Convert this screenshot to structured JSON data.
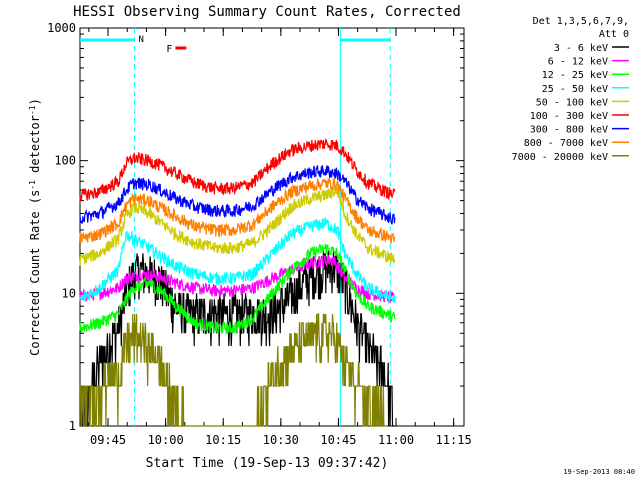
{
  "chart_data": {
    "type": "line",
    "title": "HESSI Observing Summary Count Rates, Corrected",
    "xlabel": "Start Time (19-Sep-13 09:37:42)",
    "ylabel_main": "Corrected Count Rate (s",
    "ylabel_sup1": "-1",
    "ylabel_mid": " detector",
    "ylabel_sup2": "-1",
    "ylabel_end": ")",
    "y_scale": "log",
    "ylim": [
      1,
      1000
    ],
    "y_tick_labels": [
      "1",
      "10",
      "100",
      "1000"
    ],
    "xlim": [
      "09:37:42",
      "11:17:42"
    ],
    "x_tick_labels": [
      "09:45",
      "10:00",
      "10:15",
      "10:30",
      "10:45",
      "11:00",
      "11:15"
    ],
    "legend_title_1": "Det 1,3,5,6,7,9,",
    "legend_title_2": "Att 0",
    "legend_position": "right",
    "grid": false,
    "series": [
      {
        "name": "3 - 6 keV",
        "color": "#000000",
        "values": [
          [
            0,
            1
          ],
          [
            5,
            3
          ],
          [
            10,
            5.5
          ],
          [
            12,
            10
          ],
          [
            14,
            14
          ],
          [
            16,
            15
          ],
          [
            18,
            14
          ],
          [
            20,
            13.5
          ],
          [
            22,
            11
          ],
          [
            25,
            8
          ],
          [
            28,
            7
          ],
          [
            30,
            7
          ],
          [
            35,
            7
          ],
          [
            40,
            7
          ],
          [
            45,
            7
          ],
          [
            48,
            7
          ],
          [
            50,
            7
          ],
          [
            54,
            9
          ],
          [
            58,
            12
          ],
          [
            62,
            15
          ],
          [
            66,
            16.5
          ],
          [
            69,
            12
          ],
          [
            72,
            6
          ],
          [
            75,
            4
          ],
          [
            80,
            2.2
          ],
          [
            82,
            1
          ]
        ]
      },
      {
        "name": "6 - 12 keV",
        "color": "#ff00ff",
        "values": [
          [
            0,
            9.5
          ],
          [
            5,
            10
          ],
          [
            10,
            11
          ],
          [
            12,
            13
          ],
          [
            16,
            14
          ],
          [
            20,
            13.5
          ],
          [
            25,
            12
          ],
          [
            30,
            11
          ],
          [
            35,
            10.5
          ],
          [
            40,
            10.5
          ],
          [
            45,
            11
          ],
          [
            50,
            13
          ],
          [
            55,
            15
          ],
          [
            60,
            17
          ],
          [
            66,
            18
          ],
          [
            69,
            13
          ],
          [
            72,
            11
          ],
          [
            75,
            10
          ],
          [
            80,
            9.5
          ],
          [
            82,
            9
          ]
        ]
      },
      {
        "name": "12 - 25 keV",
        "color": "#00ff00",
        "values": [
          [
            0,
            5.5
          ],
          [
            5,
            6
          ],
          [
            10,
            7
          ],
          [
            12,
            9
          ],
          [
            14,
            11
          ],
          [
            18,
            12
          ],
          [
            22,
            10
          ],
          [
            25,
            8
          ],
          [
            30,
            6
          ],
          [
            35,
            5.5
          ],
          [
            40,
            5.5
          ],
          [
            45,
            6.5
          ],
          [
            50,
            10
          ],
          [
            55,
            15
          ],
          [
            60,
            20
          ],
          [
            64,
            22
          ],
          [
            67,
            20
          ],
          [
            69,
            15
          ],
          [
            72,
            10
          ],
          [
            75,
            8
          ],
          [
            80,
            7
          ],
          [
            82,
            6.5
          ]
        ]
      },
      {
        "name": "25 - 50 keV",
        "color": "#00ffff",
        "values": [
          [
            0,
            9
          ],
          [
            5,
            11
          ],
          [
            10,
            15
          ],
          [
            12,
            28
          ],
          [
            14,
            26
          ],
          [
            18,
            22
          ],
          [
            20,
            20
          ],
          [
            25,
            16
          ],
          [
            30,
            14
          ],
          [
            35,
            13
          ],
          [
            40,
            13
          ],
          [
            45,
            14
          ],
          [
            50,
            20
          ],
          [
            55,
            28
          ],
          [
            60,
            32
          ],
          [
            64,
            34
          ],
          [
            67,
            30
          ],
          [
            69,
            20
          ],
          [
            72,
            14
          ],
          [
            75,
            11
          ],
          [
            80,
            9.5
          ],
          [
            82,
            9
          ]
        ]
      },
      {
        "name": "50 - 100 keV",
        "color": "#cccc00",
        "values": [
          [
            0,
            18
          ],
          [
            5,
            20
          ],
          [
            10,
            26
          ],
          [
            12,
            38
          ],
          [
            14,
            45
          ],
          [
            18,
            40
          ],
          [
            20,
            36
          ],
          [
            25,
            28
          ],
          [
            30,
            24
          ],
          [
            35,
            22
          ],
          [
            40,
            22
          ],
          [
            45,
            24
          ],
          [
            50,
            32
          ],
          [
            55,
            45
          ],
          [
            60,
            52
          ],
          [
            64,
            55
          ],
          [
            67,
            60
          ],
          [
            69,
            40
          ],
          [
            72,
            28
          ],
          [
            75,
            22
          ],
          [
            80,
            19
          ],
          [
            82,
            18
          ]
        ]
      },
      {
        "name": "100 - 300 keV",
        "color": "#ff0000",
        "values": [
          [
            0,
            55
          ],
          [
            5,
            58
          ],
          [
            10,
            70
          ],
          [
            12,
            95
          ],
          [
            14,
            105
          ],
          [
            18,
            100
          ],
          [
            20,
            95
          ],
          [
            25,
            80
          ],
          [
            30,
            68
          ],
          [
            35,
            62
          ],
          [
            40,
            62
          ],
          [
            45,
            68
          ],
          [
            50,
            95
          ],
          [
            55,
            120
          ],
          [
            60,
            130
          ],
          [
            64,
            135
          ],
          [
            67,
            130
          ],
          [
            69,
            115
          ],
          [
            72,
            85
          ],
          [
            75,
            68
          ],
          [
            80,
            58
          ],
          [
            82,
            55
          ]
        ]
      },
      {
        "name": "300 - 800 keV",
        "color": "#0000ff",
        "values": [
          [
            0,
            37
          ],
          [
            5,
            40
          ],
          [
            10,
            48
          ],
          [
            12,
            60
          ],
          [
            14,
            68
          ],
          [
            18,
            66
          ],
          [
            20,
            62
          ],
          [
            25,
            52
          ],
          [
            30,
            45
          ],
          [
            35,
            42
          ],
          [
            40,
            42
          ],
          [
            45,
            46
          ],
          [
            50,
            60
          ],
          [
            55,
            75
          ],
          [
            60,
            82
          ],
          [
            64,
            84
          ],
          [
            67,
            80
          ],
          [
            69,
            70
          ],
          [
            72,
            52
          ],
          [
            75,
            44
          ],
          [
            80,
            38
          ],
          [
            82,
            36
          ]
        ]
      },
      {
        "name": "800 - 7000 keV",
        "color": "#ff8000",
        "values": [
          [
            0,
            26
          ],
          [
            5,
            28
          ],
          [
            10,
            34
          ],
          [
            12,
            46
          ],
          [
            14,
            52
          ],
          [
            18,
            50
          ],
          [
            20,
            46
          ],
          [
            25,
            38
          ],
          [
            30,
            32
          ],
          [
            35,
            30
          ],
          [
            40,
            30
          ],
          [
            45,
            33
          ],
          [
            50,
            45
          ],
          [
            55,
            58
          ],
          [
            60,
            65
          ],
          [
            64,
            68
          ],
          [
            67,
            66
          ],
          [
            69,
            52
          ],
          [
            72,
            38
          ],
          [
            75,
            30
          ],
          [
            80,
            27
          ],
          [
            82,
            25
          ]
        ]
      },
      {
        "name": "7000 - 20000 keV",
        "color": "#808000",
        "values": [
          [
            0,
            1.5
          ],
          [
            5,
            2
          ],
          [
            10,
            2.5
          ],
          [
            12,
            4
          ],
          [
            14,
            5
          ],
          [
            18,
            4
          ],
          [
            20,
            3.5
          ],
          [
            22,
            2.5
          ],
          [
            25,
            1.5
          ],
          [
            28,
            1
          ],
          [
            45,
            1
          ],
          [
            48,
            1.5
          ],
          [
            50,
            2.5
          ],
          [
            54,
            3.5
          ],
          [
            58,
            4.5
          ],
          [
            62,
            5
          ],
          [
            65,
            5
          ],
          [
            67,
            4.5
          ],
          [
            69,
            3
          ],
          [
            72,
            2
          ],
          [
            75,
            1.5
          ],
          [
            78,
            1.5
          ],
          [
            80,
            1
          ]
        ]
      }
    ],
    "annotations": [
      {
        "text": "N",
        "x": 14.2,
        "color": "#00ffff"
      },
      {
        "text": "F",
        "x": 22.5,
        "color": "#ff0000"
      }
    ],
    "night_intervals": [
      [
        0,
        14.2
      ],
      [
        67.8,
        80.8
      ]
    ],
    "vertical_markers_min": [
      14.2,
      67.8,
      80.8
    ]
  },
  "footer": {
    "timestamp": "19-Sep-2013 08:40"
  },
  "colors": {
    "background": "#ffffff",
    "axes": "#000000",
    "night_bar": "#00ffff",
    "flare_bar": "#ff0000"
  }
}
